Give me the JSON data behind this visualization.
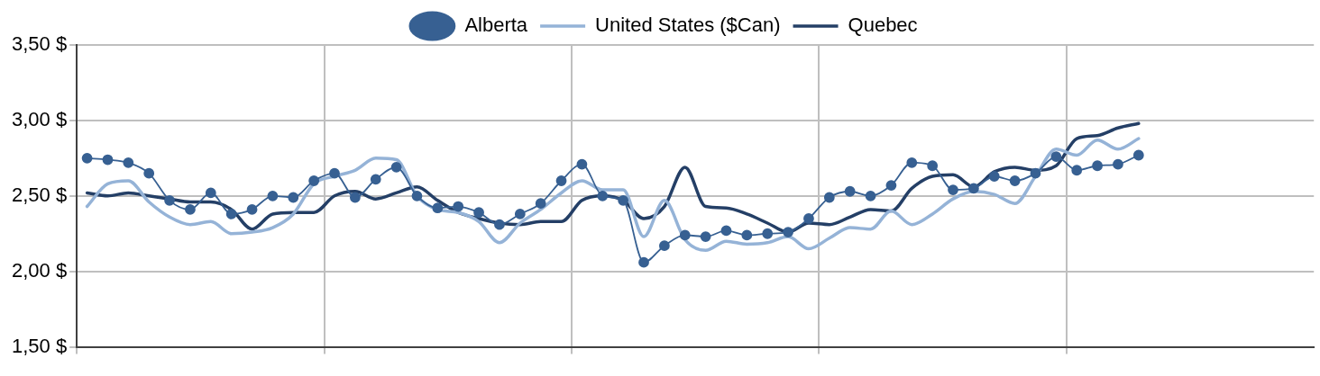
{
  "chart_data": {
    "type": "line",
    "categories": [
      null,
      null,
      null,
      null,
      null,
      null,
      null,
      null,
      null,
      null,
      null,
      null,
      null,
      null,
      null,
      null,
      null,
      null,
      null,
      null,
      null,
      null,
      null,
      null,
      null,
      null,
      null,
      null,
      null,
      null,
      null,
      null,
      null,
      null,
      null,
      null,
      null,
      null,
      null,
      null,
      null,
      null,
      null,
      null,
      null,
      null,
      null,
      null,
      null,
      null,
      null,
      null,
      null,
      null,
      null,
      null,
      null,
      null,
      null,
      null
    ],
    "series": [
      {
        "name": "Quebec",
        "color": "#243f66",
        "marker": "none",
        "values": [
          2.52,
          2.5,
          2.52,
          2.5,
          2.48,
          2.46,
          2.46,
          2.41,
          2.28,
          2.38,
          2.39,
          2.39,
          2.5,
          2.53,
          2.48,
          2.52,
          2.56,
          2.47,
          2.39,
          2.35,
          2.32,
          2.31,
          2.33,
          2.33,
          2.47,
          2.5,
          2.47,
          2.35,
          2.43,
          2.69,
          2.43,
          2.42,
          2.38,
          2.32,
          2.26,
          2.32,
          2.31,
          2.36,
          2.41,
          2.4,
          2.55,
          2.63,
          2.64,
          2.56,
          2.66,
          2.69,
          2.67,
          2.7,
          2.88,
          2.9,
          2.95,
          2.98,
          null,
          null,
          null,
          null,
          null,
          null,
          null,
          null
        ]
      },
      {
        "name": "United States ($Can)",
        "color": "#95b3d7",
        "marker": "none",
        "values": [
          2.43,
          2.58,
          2.6,
          2.46,
          2.36,
          2.31,
          2.33,
          2.25,
          2.26,
          2.29,
          2.38,
          2.58,
          2.63,
          2.67,
          2.75,
          2.74,
          2.5,
          2.41,
          2.39,
          2.33,
          2.19,
          2.32,
          2.41,
          2.52,
          2.6,
          2.54,
          2.54,
          2.23,
          2.47,
          2.21,
          2.14,
          2.2,
          2.18,
          2.19,
          2.23,
          2.15,
          2.22,
          2.29,
          2.28,
          2.4,
          2.31,
          2.38,
          2.48,
          2.53,
          2.51,
          2.45,
          2.63,
          2.81,
          2.77,
          2.87,
          2.81,
          2.88,
          null,
          null,
          null,
          null,
          null,
          null,
          null,
          null
        ]
      },
      {
        "name": "Alberta",
        "color": "#376092",
        "marker": "circle",
        "values": [
          2.75,
          2.74,
          2.72,
          2.65,
          2.47,
          2.41,
          2.52,
          2.38,
          2.41,
          2.5,
          2.49,
          2.6,
          2.65,
          2.49,
          2.61,
          2.69,
          2.5,
          2.42,
          2.43,
          2.39,
          2.31,
          2.38,
          2.45,
          2.6,
          2.71,
          2.5,
          2.47,
          2.06,
          2.17,
          2.24,
          2.23,
          2.27,
          2.24,
          2.25,
          2.26,
          2.35,
          2.49,
          2.53,
          2.5,
          2.57,
          2.72,
          2.7,
          2.54,
          2.55,
          2.63,
          2.6,
          2.65,
          2.76,
          2.67,
          2.7,
          2.71,
          2.77,
          null,
          null,
          null,
          null,
          null,
          null,
          null,
          null
        ]
      }
    ],
    "ylim": [
      1.5,
      3.5
    ],
    "yticks": [
      {
        "value": 1.5,
        "label": "1,50 $"
      },
      {
        "value": 2,
        "label": "2,00 $"
      },
      {
        "value": 2.5,
        "label": "2,50 $"
      },
      {
        "value": 3,
        "label": "3,00 $"
      },
      {
        "value": 3.5,
        "label": "3,50 $"
      }
    ],
    "grid": true,
    "legend": "top"
  }
}
